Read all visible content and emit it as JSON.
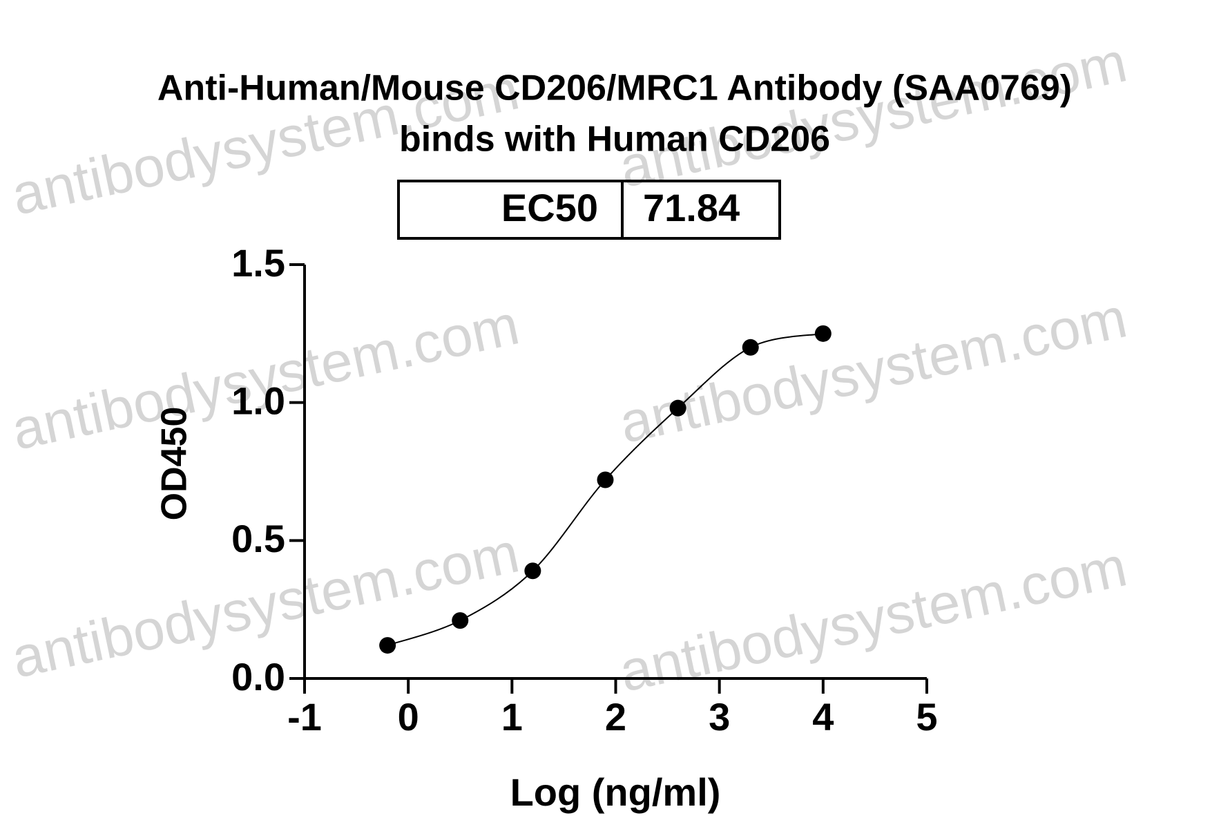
{
  "chart_data": {
    "type": "scatter",
    "title": "Anti-Human/Mouse CD206/MRC1 Antibody (SAA0769)",
    "subtitle": "binds with Human CD206",
    "ec50_label": "EC50",
    "ec50_value": 71.84,
    "x_label": "Log (ng/ml)",
    "y_label": "OD450",
    "x": [
      -0.2,
      0.5,
      1.2,
      1.9,
      2.6,
      3.3,
      4.0
    ],
    "values": [
      0.12,
      0.21,
      0.39,
      0.72,
      0.98,
      1.2,
      1.25
    ],
    "color": "#000000",
    "xlim": [
      -1,
      5
    ],
    "xticks": [
      -1,
      0,
      1,
      2,
      3,
      4,
      5
    ],
    "ylim": [
      0,
      1.5
    ],
    "yticks": [
      {
        "value": 0,
        "label": "0.0"
      },
      0.5,
      {
        "value": 1,
        "label": "1.0"
      },
      1.5
    ],
    "watermark": "antibodysystem.com"
  }
}
